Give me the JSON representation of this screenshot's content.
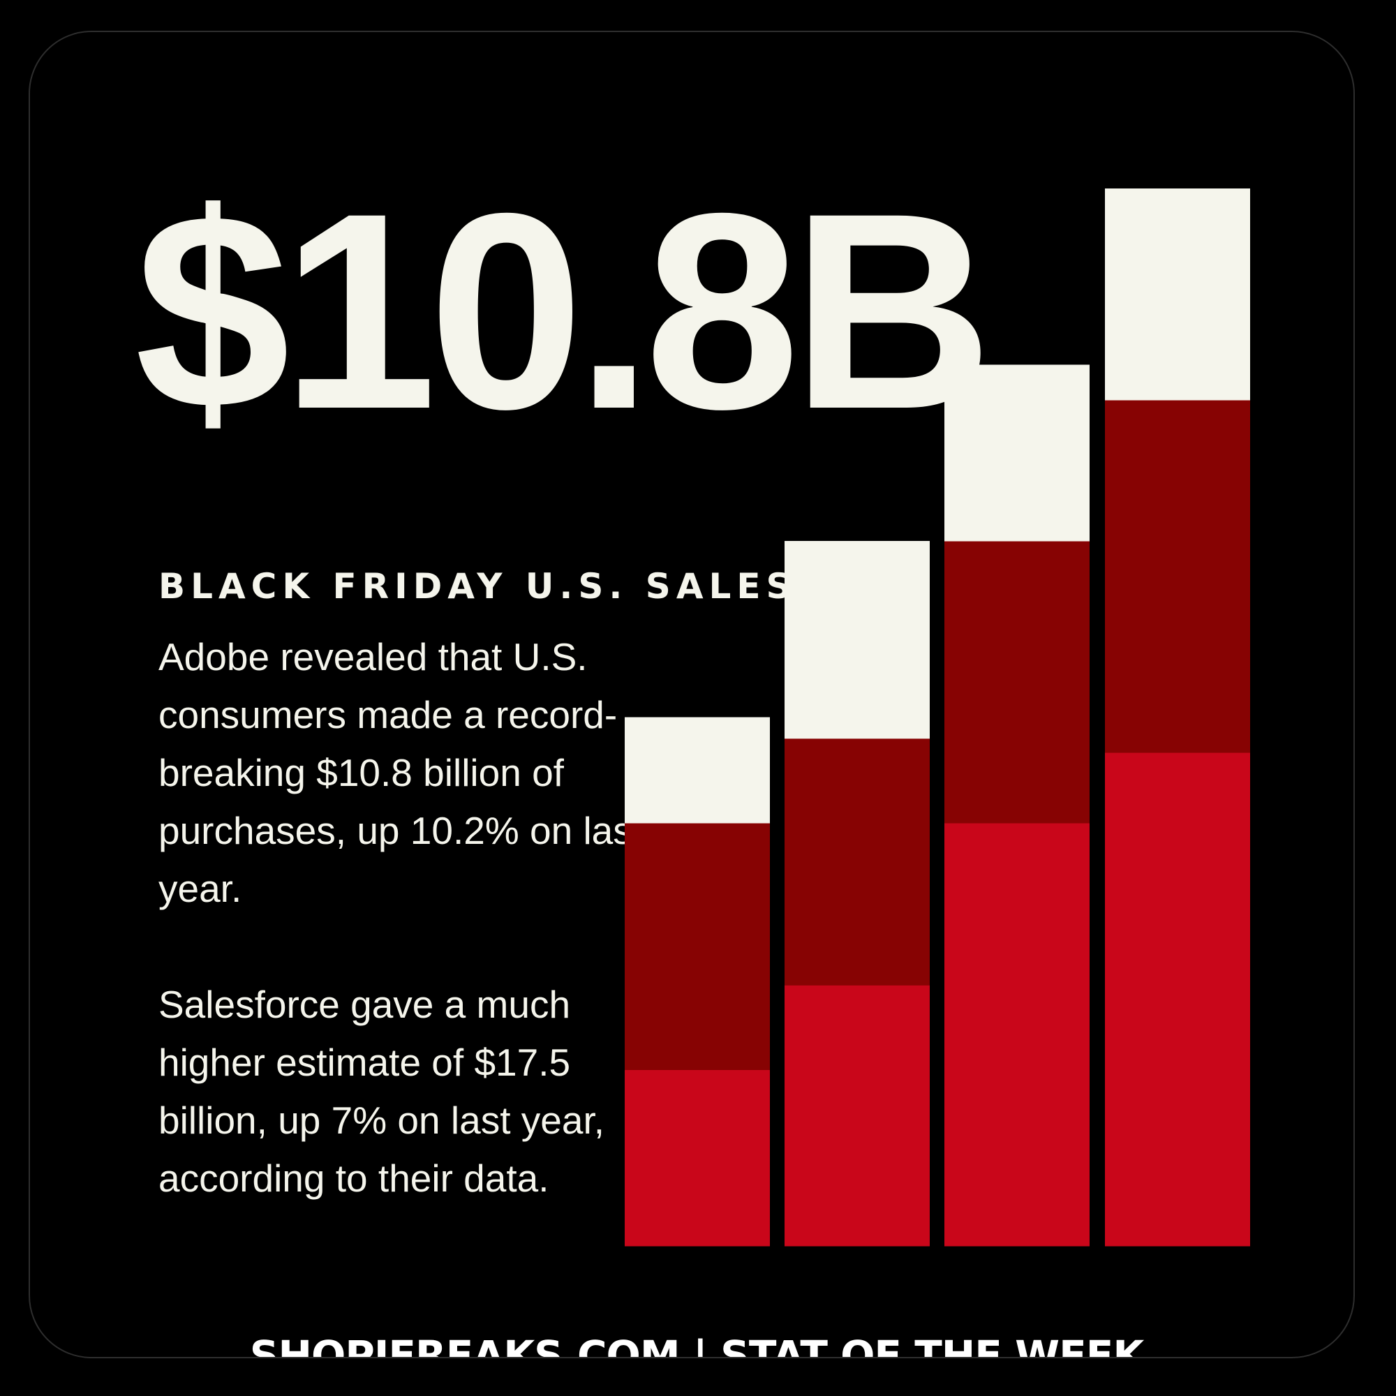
{
  "headline": {
    "value_text": "$10.8B"
  },
  "subtitle": "BLACK FRIDAY U.S. SALES",
  "paragraphs": [
    "Adobe revealed that U.S. consumers made a record-breaking $10.8 billion of purchases, up 10.2% on last year.",
    "Salesforce gave a much higher estimate of $17.5 billion, up 7% on last year, according to their data."
  ],
  "footer": "SHOPIFREAKS.COM | STAT OF THE WEEK",
  "colors": {
    "background": "#000000",
    "cream": "#f5f5ec",
    "dark_red": "#870303",
    "bright_red": "#c9061a"
  },
  "chart_data": {
    "type": "bar",
    "stacked": true,
    "decorative": true,
    "categories": [
      "",
      "",
      "",
      ""
    ],
    "segment_colors": [
      "#c9061a",
      "#870303",
      "#f5f5ec"
    ],
    "bars": [
      [
        25,
        35,
        15
      ],
      [
        37,
        35,
        28
      ],
      [
        60,
        40,
        25
      ],
      [
        70,
        50,
        30
      ]
    ],
    "ylim": [
      0,
      150
    ],
    "grid": false,
    "legend": "none"
  }
}
